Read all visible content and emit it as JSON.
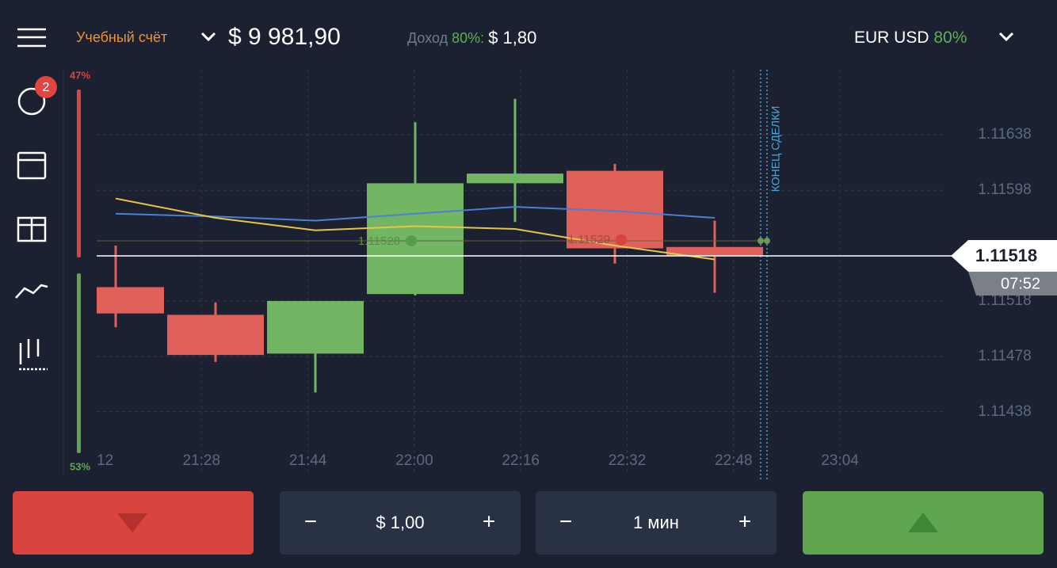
{
  "header": {
    "account": "Учебный счёт",
    "balance": "$ 9 981,90",
    "income_label": "Доход",
    "income_percent": "80%:",
    "income_value": "$ 1,80",
    "asset": "EUR USD",
    "asset_percent": "80%"
  },
  "sidebar": {
    "badge": "2"
  },
  "sentiment": {
    "sell": "47%",
    "buy": "53%"
  },
  "chart_data": {
    "type": "candlestick",
    "open": [
      1.11528,
      1.11508,
      1.1148,
      1.11523,
      1.11603,
      1.11612,
      1.11557
    ],
    "high": [
      1.11558,
      1.11517,
      1.11518,
      1.11647,
      1.11664,
      1.11617,
      1.11576
    ],
    "low": [
      1.11499,
      1.11474,
      1.11452,
      1.11522,
      1.11575,
      1.11545,
      1.11524
    ],
    "close": [
      1.11509,
      1.11479,
      1.11518,
      1.11603,
      1.1161,
      1.11556,
      1.11551
    ],
    "up_color": "#72b664",
    "down_color": "#e0605a",
    "series": [
      {
        "color": "#4a7fd6",
        "values": [
          1.11581,
          1.11579,
          1.11576,
          1.11581,
          1.11586,
          1.11583,
          1.11578
        ]
      },
      {
        "color": "#e8c547",
        "values": [
          1.11592,
          1.11578,
          1.11569,
          1.11572,
          1.1157,
          1.11558,
          1.11548
        ]
      }
    ],
    "x_labels": [
      "12",
      "21:28",
      "21:44",
      "22:00",
      "22:16",
      "22:32",
      "22:48",
      "23:04"
    ],
    "ylim": [
      1.11415,
      1.11685
    ],
    "yticks": [
      1.11638,
      1.11598,
      1.11518,
      1.11478,
      1.11438
    ],
    "grid": true,
    "price_label": "1.11518",
    "timer": "07:52",
    "deal_end": "КОНЕЦ СДЕЛКИ",
    "trades": [
      "1.11528",
      "1.11529"
    ]
  },
  "controls": {
    "amount": "$ 1,00",
    "duration": "1 мин",
    "minus": "−",
    "plus": "+"
  }
}
